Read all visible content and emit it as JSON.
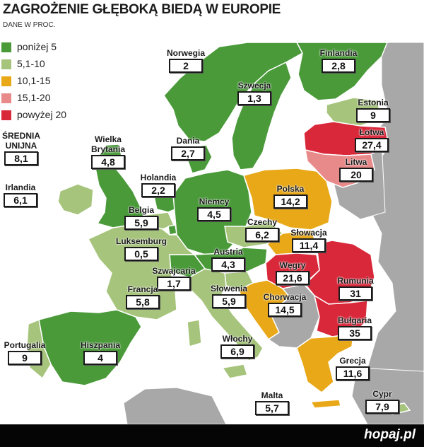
{
  "title": "ZAGROŻENIE GŁĘBOKĄ BIEDĄ W EUROPIE",
  "subtitle": "DANE W PROC.",
  "legend": [
    {
      "label": "poniżej 5",
      "color": "#4a9a3a"
    },
    {
      "label": "5,1-10",
      "color": "#a6c47c"
    },
    {
      "label": "10,1-15",
      "color": "#e8a818"
    },
    {
      "label": "15,1-20",
      "color": "#e88a8a"
    },
    {
      "label": "powyżej 20",
      "color": "#d8283a"
    }
  ],
  "colors": {
    "sea": "#ffffff",
    "non_eu": "#a8a8a8",
    "border": "#ffffff"
  },
  "average": {
    "name": "ŚREDNIA UNIJNA",
    "line1": "ŚREDNIA",
    "line2": "UNIJNA",
    "value": "8,1"
  },
  "countries": {
    "norwegia": {
      "name": "Norwegia",
      "value": "2"
    },
    "finlandia": {
      "name": "Finlandia",
      "value": "2,8"
    },
    "szwecja": {
      "name": "Szwecja",
      "value": "1,3"
    },
    "estonia": {
      "name": "Estonia",
      "value": "9"
    },
    "lotwa": {
      "name": "Łotwa",
      "value": "27,4"
    },
    "litwa": {
      "name": "Litwa",
      "value": "20"
    },
    "wielka_brytania": {
      "name": "Wielka Brytania",
      "line1": "Wielka",
      "line2": "Brytania",
      "value": "4,8"
    },
    "dania": {
      "name": "Dania",
      "value": "2,7"
    },
    "irlandia": {
      "name": "Irlandia",
      "value": "6,1"
    },
    "holandia": {
      "name": "Holandia",
      "value": "2,2"
    },
    "niemcy": {
      "name": "Niemcy",
      "value": "4,5"
    },
    "polska": {
      "name": "Polska",
      "value": "14,2"
    },
    "belgia": {
      "name": "Belgia",
      "value": "5,9"
    },
    "czechy": {
      "name": "Czechy",
      "value": "6,2"
    },
    "slowacja": {
      "name": "Słowacja",
      "value": "11,4"
    },
    "luksemburg": {
      "name": "Luksemburg",
      "value": "0,5"
    },
    "austria": {
      "name": "Austria",
      "value": "4,3"
    },
    "wegry": {
      "name": "Węgry",
      "value": "21,6"
    },
    "szwajcaria": {
      "name": "Szwajcaria",
      "value": "1,7"
    },
    "rumunia": {
      "name": "Rumunia",
      "value": "31"
    },
    "francja": {
      "name": "Francja",
      "value": "5,8"
    },
    "slowenia": {
      "name": "Słowenia",
      "value": "5,9"
    },
    "chorwacja": {
      "name": "Chorwacja",
      "value": "14,5"
    },
    "bulgaria": {
      "name": "Bułgaria",
      "value": "35"
    },
    "portugalia": {
      "name": "Portugalia",
      "value": "9"
    },
    "hiszpania": {
      "name": "Hiszpania",
      "value": "4"
    },
    "wlochy": {
      "name": "Włochy",
      "value": "6,9"
    },
    "grecja": {
      "name": "Grecja",
      "value": "11,6"
    },
    "malta": {
      "name": "Malta",
      "value": "5,7"
    },
    "cypr": {
      "name": "Cypr",
      "value": "7,9"
    }
  },
  "brand": "hopaj.pl"
}
